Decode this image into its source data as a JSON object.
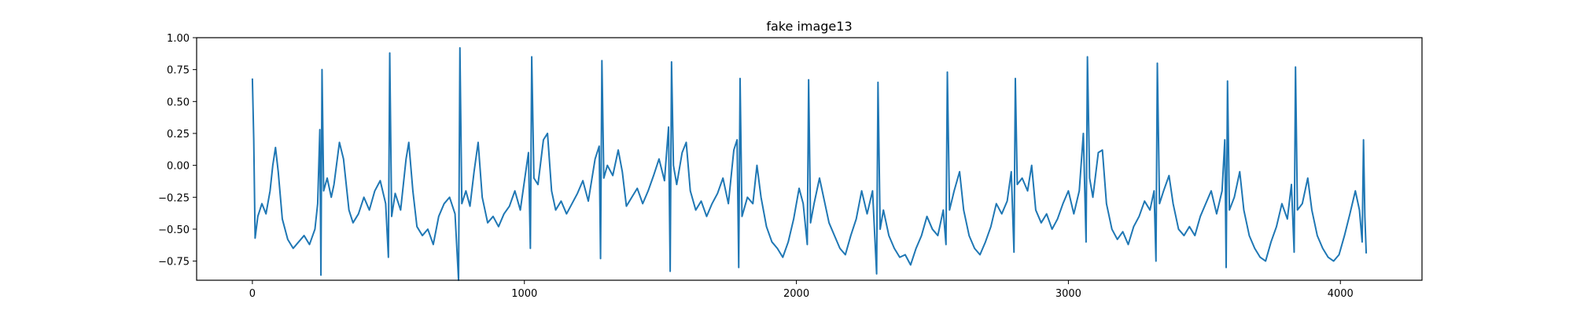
{
  "chart_data": {
    "type": "line",
    "title": "fake image13",
    "xlabel": "",
    "ylabel": "",
    "xlim": [
      -205,
      4300
    ],
    "ylim": [
      -0.9,
      1.0
    ],
    "xticks": [
      0,
      1000,
      2000,
      3000,
      4000
    ],
    "xtick_labels": [
      "0",
      "1000",
      "2000",
      "3000",
      "4000"
    ],
    "yticks": [
      -0.75,
      -0.5,
      -0.25,
      0.0,
      0.25,
      0.5,
      0.75,
      1.0
    ],
    "ytick_labels": [
      "−0.75",
      "−0.50",
      "−0.25",
      "0.00",
      "0.25",
      "0.50",
      "0.75",
      "1.00"
    ],
    "grid": false,
    "line_color": "#1f77b4",
    "series": [
      {
        "values": [
          [
            0,
            0.68
          ],
          [
            5,
            0.2
          ],
          [
            10,
            -0.57
          ],
          [
            20,
            -0.4
          ],
          [
            35,
            -0.3
          ],
          [
            50,
            -0.38
          ],
          [
            65,
            -0.2
          ],
          [
            75,
            0.0
          ],
          [
            85,
            0.14
          ],
          [
            95,
            -0.05
          ],
          [
            110,
            -0.42
          ],
          [
            130,
            -0.58
          ],
          [
            150,
            -0.65
          ],
          [
            170,
            -0.6
          ],
          [
            190,
            -0.55
          ],
          [
            210,
            -0.62
          ],
          [
            230,
            -0.5
          ],
          [
            240,
            -0.3
          ],
          [
            248,
            0.28
          ],
          [
            252,
            -0.86
          ],
          [
            256,
            0.75
          ],
          [
            262,
            -0.2
          ],
          [
            275,
            -0.1
          ],
          [
            290,
            -0.25
          ],
          [
            300,
            -0.15
          ],
          [
            320,
            0.18
          ],
          [
            335,
            0.05
          ],
          [
            355,
            -0.35
          ],
          [
            370,
            -0.45
          ],
          [
            390,
            -0.38
          ],
          [
            410,
            -0.25
          ],
          [
            430,
            -0.35
          ],
          [
            450,
            -0.2
          ],
          [
            470,
            -0.12
          ],
          [
            490,
            -0.3
          ],
          [
            500,
            -0.72
          ],
          [
            505,
            0.88
          ],
          [
            512,
            -0.4
          ],
          [
            525,
            -0.22
          ],
          [
            545,
            -0.35
          ],
          [
            565,
            0.05
          ],
          [
            575,
            0.18
          ],
          [
            590,
            -0.2
          ],
          [
            605,
            -0.48
          ],
          [
            625,
            -0.55
          ],
          [
            645,
            -0.5
          ],
          [
            665,
            -0.62
          ],
          [
            685,
            -0.4
          ],
          [
            705,
            -0.3
          ],
          [
            725,
            -0.25
          ],
          [
            745,
            -0.38
          ],
          [
            758,
            -0.9
          ],
          [
            763,
            0.92
          ],
          [
            770,
            -0.3
          ],
          [
            785,
            -0.2
          ],
          [
            800,
            -0.32
          ],
          [
            815,
            -0.05
          ],
          [
            830,
            0.18
          ],
          [
            845,
            -0.25
          ],
          [
            865,
            -0.45
          ],
          [
            885,
            -0.4
          ],
          [
            905,
            -0.48
          ],
          [
            925,
            -0.38
          ],
          [
            945,
            -0.32
          ],
          [
            965,
            -0.2
          ],
          [
            985,
            -0.35
          ],
          [
            1005,
            -0.05
          ],
          [
            1015,
            0.1
          ],
          [
            1022,
            -0.65
          ],
          [
            1027,
            0.85
          ],
          [
            1035,
            -0.1
          ],
          [
            1050,
            -0.15
          ],
          [
            1070,
            0.2
          ],
          [
            1085,
            0.25
          ],
          [
            1100,
            -0.2
          ],
          [
            1115,
            -0.35
          ],
          [
            1135,
            -0.28
          ],
          [
            1155,
            -0.38
          ],
          [
            1175,
            -0.3
          ],
          [
            1195,
            -0.22
          ],
          [
            1215,
            -0.12
          ],
          [
            1235,
            -0.28
          ],
          [
            1260,
            0.05
          ],
          [
            1275,
            0.15
          ],
          [
            1280,
            -0.73
          ],
          [
            1285,
            0.82
          ],
          [
            1292,
            -0.1
          ],
          [
            1305,
            0.0
          ],
          [
            1325,
            -0.08
          ],
          [
            1345,
            0.12
          ],
          [
            1360,
            -0.05
          ],
          [
            1375,
            -0.32
          ],
          [
            1395,
            -0.25
          ],
          [
            1415,
            -0.18
          ],
          [
            1435,
            -0.3
          ],
          [
            1455,
            -0.2
          ],
          [
            1475,
            -0.08
          ],
          [
            1495,
            0.05
          ],
          [
            1515,
            -0.12
          ],
          [
            1530,
            0.3
          ],
          [
            1536,
            -0.83
          ],
          [
            1541,
            0.81
          ],
          [
            1548,
            0.0
          ],
          [
            1560,
            -0.15
          ],
          [
            1580,
            0.1
          ],
          [
            1595,
            0.18
          ],
          [
            1610,
            -0.2
          ],
          [
            1630,
            -0.35
          ],
          [
            1650,
            -0.28
          ],
          [
            1670,
            -0.4
          ],
          [
            1690,
            -0.3
          ],
          [
            1710,
            -0.22
          ],
          [
            1730,
            -0.1
          ],
          [
            1750,
            -0.3
          ],
          [
            1770,
            0.12
          ],
          [
            1782,
            0.2
          ],
          [
            1788,
            -0.8
          ],
          [
            1793,
            0.68
          ],
          [
            1800,
            -0.4
          ],
          [
            1820,
            -0.25
          ],
          [
            1840,
            -0.3
          ],
          [
            1855,
            0.0
          ],
          [
            1870,
            -0.25
          ],
          [
            1890,
            -0.48
          ],
          [
            1910,
            -0.6
          ],
          [
            1930,
            -0.65
          ],
          [
            1950,
            -0.72
          ],
          [
            1970,
            -0.6
          ],
          [
            1990,
            -0.42
          ],
          [
            2010,
            -0.18
          ],
          [
            2025,
            -0.3
          ],
          [
            2040,
            -0.62
          ],
          [
            2045,
            0.67
          ],
          [
            2052,
            -0.45
          ],
          [
            2065,
            -0.3
          ],
          [
            2085,
            -0.1
          ],
          [
            2100,
            -0.25
          ],
          [
            2120,
            -0.45
          ],
          [
            2140,
            -0.55
          ],
          [
            2160,
            -0.65
          ],
          [
            2180,
            -0.7
          ],
          [
            2200,
            -0.55
          ],
          [
            2220,
            -0.42
          ],
          [
            2240,
            -0.2
          ],
          [
            2260,
            -0.38
          ],
          [
            2280,
            -0.2
          ],
          [
            2295,
            -0.85
          ],
          [
            2300,
            0.65
          ],
          [
            2308,
            -0.5
          ],
          [
            2320,
            -0.35
          ],
          [
            2340,
            -0.55
          ],
          [
            2360,
            -0.65
          ],
          [
            2380,
            -0.72
          ],
          [
            2400,
            -0.7
          ],
          [
            2420,
            -0.78
          ],
          [
            2440,
            -0.65
          ],
          [
            2460,
            -0.55
          ],
          [
            2480,
            -0.4
          ],
          [
            2500,
            -0.5
          ],
          [
            2520,
            -0.55
          ],
          [
            2540,
            -0.35
          ],
          [
            2550,
            -0.62
          ],
          [
            2555,
            0.73
          ],
          [
            2563,
            -0.35
          ],
          [
            2580,
            -0.2
          ],
          [
            2600,
            -0.05
          ],
          [
            2615,
            -0.35
          ],
          [
            2635,
            -0.55
          ],
          [
            2655,
            -0.65
          ],
          [
            2675,
            -0.7
          ],
          [
            2695,
            -0.6
          ],
          [
            2715,
            -0.48
          ],
          [
            2735,
            -0.3
          ],
          [
            2755,
            -0.38
          ],
          [
            2775,
            -0.28
          ],
          [
            2790,
            -0.05
          ],
          [
            2800,
            -0.68
          ],
          [
            2805,
            0.68
          ],
          [
            2812,
            -0.15
          ],
          [
            2830,
            -0.1
          ],
          [
            2850,
            -0.2
          ],
          [
            2865,
            0.0
          ],
          [
            2880,
            -0.35
          ],
          [
            2900,
            -0.45
          ],
          [
            2920,
            -0.38
          ],
          [
            2940,
            -0.5
          ],
          [
            2960,
            -0.42
          ],
          [
            2980,
            -0.3
          ],
          [
            3000,
            -0.2
          ],
          [
            3020,
            -0.38
          ],
          [
            3040,
            -0.2
          ],
          [
            3055,
            0.25
          ],
          [
            3065,
            -0.6
          ],
          [
            3070,
            0.85
          ],
          [
            3078,
            -0.1
          ],
          [
            3090,
            -0.25
          ],
          [
            3110,
            0.1
          ],
          [
            3125,
            0.12
          ],
          [
            3140,
            -0.3
          ],
          [
            3160,
            -0.5
          ],
          [
            3180,
            -0.58
          ],
          [
            3200,
            -0.52
          ],
          [
            3220,
            -0.62
          ],
          [
            3240,
            -0.48
          ],
          [
            3260,
            -0.4
          ],
          [
            3280,
            -0.28
          ],
          [
            3300,
            -0.35
          ],
          [
            3315,
            -0.2
          ],
          [
            3322,
            -0.75
          ],
          [
            3327,
            0.8
          ],
          [
            3335,
            -0.3
          ],
          [
            3350,
            -0.2
          ],
          [
            3370,
            -0.08
          ],
          [
            3385,
            -0.3
          ],
          [
            3405,
            -0.5
          ],
          [
            3425,
            -0.55
          ],
          [
            3445,
            -0.48
          ],
          [
            3465,
            -0.55
          ],
          [
            3485,
            -0.4
          ],
          [
            3505,
            -0.3
          ],
          [
            3525,
            -0.2
          ],
          [
            3545,
            -0.38
          ],
          [
            3565,
            -0.2
          ],
          [
            3575,
            0.2
          ],
          [
            3580,
            -0.8
          ],
          [
            3585,
            0.66
          ],
          [
            3592,
            -0.35
          ],
          [
            3610,
            -0.25
          ],
          [
            3630,
            -0.05
          ],
          [
            3645,
            -0.35
          ],
          [
            3665,
            -0.55
          ],
          [
            3685,
            -0.65
          ],
          [
            3705,
            -0.72
          ],
          [
            3725,
            -0.75
          ],
          [
            3745,
            -0.6
          ],
          [
            3765,
            -0.48
          ],
          [
            3785,
            -0.3
          ],
          [
            3805,
            -0.42
          ],
          [
            3820,
            -0.15
          ],
          [
            3830,
            -0.68
          ],
          [
            3835,
            0.77
          ],
          [
            3842,
            -0.35
          ],
          [
            3860,
            -0.3
          ],
          [
            3880,
            -0.1
          ],
          [
            3895,
            -0.35
          ],
          [
            3915,
            -0.55
          ],
          [
            3935,
            -0.65
          ],
          [
            3955,
            -0.72
          ],
          [
            3975,
            -0.75
          ],
          [
            3995,
            -0.7
          ],
          [
            4015,
            -0.55
          ],
          [
            4035,
            -0.38
          ],
          [
            4055,
            -0.2
          ],
          [
            4070,
            -0.35
          ],
          [
            4080,
            -0.6
          ],
          [
            4085,
            0.2
          ],
          [
            4090,
            -0.4
          ],
          [
            4095,
            -0.69
          ]
        ]
      }
    ]
  }
}
